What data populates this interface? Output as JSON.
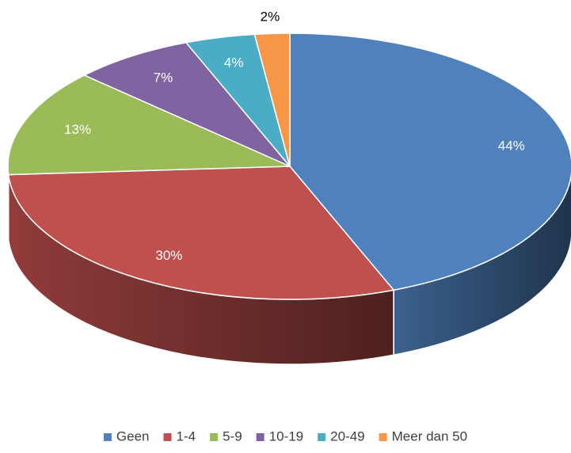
{
  "chart_data": {
    "type": "pie",
    "categories": [
      "Geen",
      "1-4",
      "5-9",
      "10-19",
      "20-49",
      "Meer dan 50"
    ],
    "values": [
      44,
      30,
      13,
      7,
      4,
      2
    ],
    "value_labels": [
      "44%",
      "30%",
      "13%",
      "7%",
      "4%",
      "2%"
    ],
    "colors": [
      "#4f81bd",
      "#c0504d",
      "#9bbb59",
      "#8064a2",
      "#4bacc6",
      "#f79646"
    ],
    "legend": "bottom"
  }
}
